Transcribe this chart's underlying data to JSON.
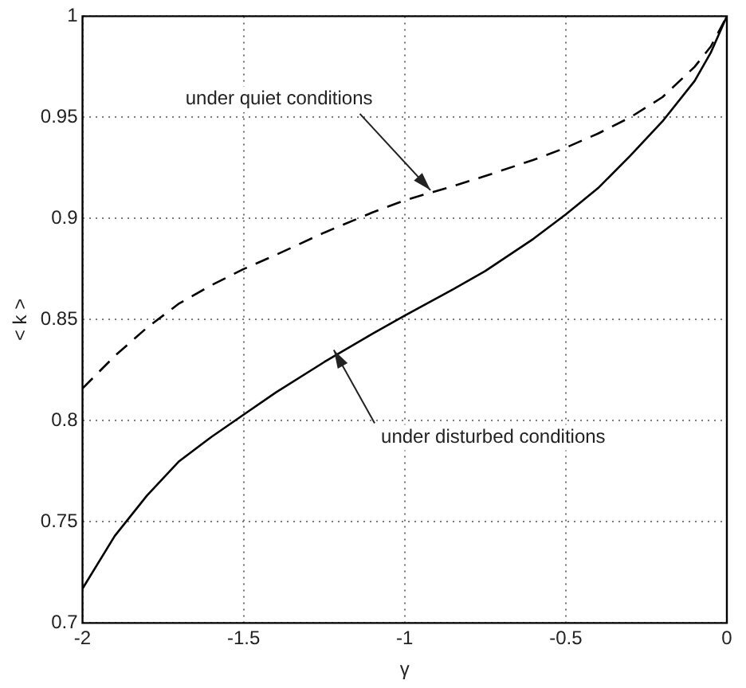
{
  "chart_data": {
    "type": "line",
    "xlabel": "γ",
    "ylabel": "< k >",
    "xlim": [
      -2,
      0
    ],
    "xticks": [
      -2,
      -1.5,
      -1,
      -0.5,
      0
    ],
    "ylim": [
      0.7,
      1
    ],
    "yticks": [
      0.7,
      0.75,
      0.8,
      0.85,
      0.9,
      0.95,
      1
    ],
    "grid": true,
    "marker": "none",
    "series": [
      {
        "color": "#000000",
        "line_style": "dashed",
        "x": [
          -2,
          -1.9,
          -1.8,
          -1.7,
          -1.6,
          -1.5,
          -1.4,
          -1.25,
          -1.1,
          -1,
          -0.85,
          -0.75,
          -0.6,
          -0.5,
          -0.4,
          -0.3,
          -0.2,
          -0.1,
          -0.05,
          0
        ],
        "values": [
          0.816,
          0.832,
          0.846,
          0.858,
          0.867,
          0.875,
          0.882,
          0.893,
          0.903,
          0.909,
          0.916,
          0.921,
          0.929,
          0.935,
          0.942,
          0.95,
          0.96,
          0.975,
          0.985,
          1
        ]
      },
      {
        "color": "#000000",
        "line_style": "solid",
        "x": [
          -2,
          -1.9,
          -1.8,
          -1.7,
          -1.6,
          -1.5,
          -1.4,
          -1.25,
          -1.1,
          -1,
          -0.85,
          -0.75,
          -0.6,
          -0.5,
          -0.4,
          -0.3,
          -0.2,
          -0.1,
          -0.05,
          0
        ],
        "values": [
          0.717,
          0.743,
          0.763,
          0.78,
          0.792,
          0.803,
          0.814,
          0.829,
          0.843,
          0.852,
          0.865,
          0.874,
          0.89,
          0.902,
          0.915,
          0.931,
          0.948,
          0.968,
          0.982,
          1
        ]
      }
    ],
    "annotations": [
      {
        "text": "under quiet conditions",
        "x": -0.92,
        "y": 0.914
      },
      {
        "text": "under disturbed conditions",
        "x": -1.22,
        "y": 0.835
      }
    ]
  }
}
